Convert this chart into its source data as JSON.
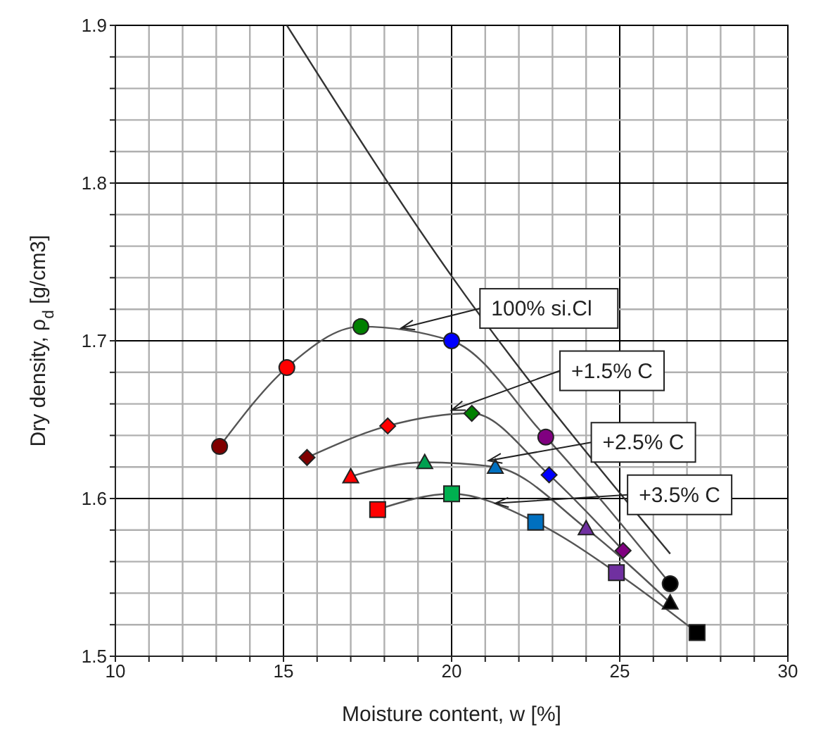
{
  "chart_data": {
    "type": "line",
    "xlabel": "Moisture content, w [%]",
    "ylabel": "Dry density, ρ$_{d}$ [g/cm3]",
    "xlim": [
      10,
      30
    ],
    "ylim": [
      1.5,
      1.9
    ],
    "xticks": [
      10,
      {
        "value": 11,
        "label": null
      },
      {
        "value": 12,
        "label": null
      },
      {
        "value": 13,
        "label": null
      },
      {
        "value": 14,
        "label": null
      },
      15,
      {
        "value": 16,
        "label": null
      },
      {
        "value": 17,
        "label": null
      },
      {
        "value": 18,
        "label": null
      },
      {
        "value": 19,
        "label": null
      },
      20,
      {
        "value": 21,
        "label": null
      },
      {
        "value": 22,
        "label": null
      },
      {
        "value": 23,
        "label": null
      },
      {
        "value": 24,
        "label": null
      },
      25,
      {
        "value": 26,
        "label": null
      },
      {
        "value": 27,
        "label": null
      },
      {
        "value": 28,
        "label": null
      },
      {
        "value": 29,
        "label": null
      },
      30
    ],
    "yticks": [
      {
        "value": 1.5,
        "label": "1.5"
      },
      {
        "value": 1.52,
        "label": null
      },
      {
        "value": 1.54,
        "label": null
      },
      {
        "value": 1.56,
        "label": null
      },
      {
        "value": 1.58,
        "label": null
      },
      {
        "value": 1.6,
        "label": "1.6"
      },
      {
        "value": 1.62,
        "label": null
      },
      {
        "value": 1.64,
        "label": null
      },
      {
        "value": 1.66,
        "label": null
      },
      {
        "value": 1.68,
        "label": null
      },
      {
        "value": 1.7,
        "label": "1.7"
      },
      {
        "value": 1.72,
        "label": null
      },
      {
        "value": 1.74,
        "label": null
      },
      {
        "value": 1.76,
        "label": null
      },
      {
        "value": 1.78,
        "label": null
      },
      {
        "value": 1.8,
        "label": "1.8"
      },
      {
        "value": 1.82,
        "label": null
      },
      {
        "value": 1.84,
        "label": null
      },
      {
        "value": 1.86,
        "label": null
      },
      {
        "value": 1.88,
        "label": null
      },
      {
        "value": 1.9,
        "label": "1.9"
      }
    ],
    "grid": true,
    "series": [
      {
        "marker": "circle",
        "color": "#555555",
        "colors": [
          "#800000",
          "#ff0000",
          "#008000",
          "#0000ff",
          "#800080",
          "#000000"
        ],
        "x": [
          13.1,
          15.1,
          17.3,
          20.0,
          22.8,
          26.5
        ],
        "values": [
          1.633,
          1.683,
          1.709,
          1.7,
          1.639,
          1.546
        ]
      },
      {
        "marker": "diamond",
        "color": "#555555",
        "colors": [
          "#800000",
          "#ff0000",
          "#008000",
          "#0000ff",
          "#800080"
        ],
        "x": [
          15.7,
          18.1,
          20.6,
          22.9,
          25.1
        ],
        "values": [
          1.626,
          1.646,
          1.654,
          1.615,
          1.567
        ]
      },
      {
        "marker": "triangle",
        "color": "#555555",
        "colors": [
          "#ff0000",
          "#00a050",
          "#0070c0",
          "#7030a0",
          "#000000"
        ],
        "x": [
          17.0,
          19.2,
          21.3,
          24.0,
          26.5
        ],
        "values": [
          1.614,
          1.623,
          1.62,
          1.581,
          1.534
        ]
      },
      {
        "marker": "square",
        "color": "#555555",
        "colors": [
          "#ff0000",
          "#00b050",
          "#0070c0",
          "#7030a0",
          "#000000"
        ],
        "x": [
          17.8,
          20.0,
          22.5,
          24.9,
          27.3
        ],
        "values": [
          1.593,
          1.603,
          1.585,
          1.553,
          1.515
        ]
      },
      {
        "marker": "none",
        "color": "#333333",
        "x": [
          15.1,
          20.0,
          26.5
        ],
        "values": [
          1.9,
          1.741,
          1.565
        ]
      }
    ],
    "annotations": [
      {
        "text": "100% si.Cl",
        "x": 18.5,
        "y": 1.708
      },
      {
        "text": "+1.5% C",
        "x": 20.0,
        "y": 1.656
      },
      {
        "text": "+2.5% C",
        "x": 21.1,
        "y": 1.624
      },
      {
        "text": "+3.5% C",
        "x": 21.3,
        "y": 1.597
      }
    ]
  }
}
